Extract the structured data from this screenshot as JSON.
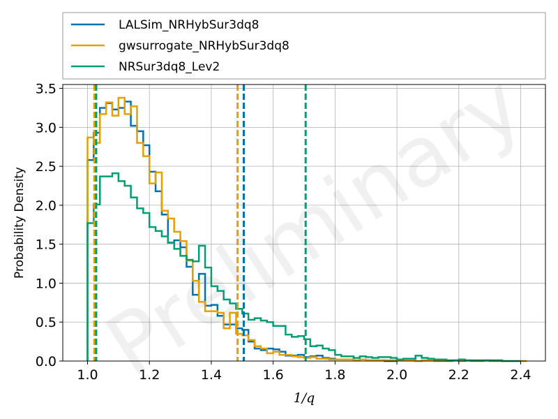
{
  "chart_data": {
    "type": "histogram",
    "xlabel": "1/q",
    "ylabel": "Probability Density",
    "xlim": [
      0.92,
      2.48
    ],
    "ylim": [
      0.0,
      3.55
    ],
    "xticks": [
      1.0,
      1.2,
      1.4,
      1.6,
      1.8,
      2.0,
      2.2,
      2.4
    ],
    "yticks": [
      0.0,
      0.5,
      1.0,
      1.5,
      2.0,
      2.5,
      3.0,
      3.5
    ],
    "xtick_labels": [
      "1.0",
      "1.2",
      "1.4",
      "1.6",
      "1.8",
      "2.0",
      "2.2",
      "2.4"
    ],
    "ytick_labels": [
      "0.0",
      "0.5",
      "1.0",
      "1.5",
      "2.0",
      "2.5",
      "3.0",
      "3.5"
    ],
    "grid": true,
    "legend_position": "above-plot",
    "watermark": "Preliminary",
    "series": [
      {
        "name": "LALSim_NRHybSur3dq8",
        "color": "#0072b2",
        "bins": [
          1.0,
          1.02,
          1.04,
          1.06,
          1.08,
          1.1,
          1.12,
          1.14,
          1.16,
          1.18,
          1.2,
          1.22,
          1.24,
          1.26,
          1.28,
          1.3,
          1.32,
          1.34,
          1.36,
          1.38,
          1.4,
          1.42,
          1.44,
          1.46,
          1.48,
          1.5,
          1.52,
          1.54,
          1.56,
          1.58,
          1.6,
          1.62,
          1.64,
          1.66,
          1.68,
          1.7,
          1.72,
          1.74,
          1.76,
          1.78,
          1.8,
          1.82,
          1.84,
          1.86,
          1.88,
          1.9,
          1.92,
          1.94,
          1.96,
          1.98,
          2.0
        ],
        "values": [
          2.58,
          2.93,
          3.25,
          3.31,
          3.23,
          3.25,
          3.33,
          3.02,
          2.95,
          2.77,
          2.43,
          2.18,
          1.88,
          1.52,
          1.55,
          1.46,
          1.21,
          0.85,
          1.12,
          0.71,
          0.72,
          0.58,
          0.47,
          0.47,
          0.42,
          0.4,
          0.25,
          0.16,
          0.14,
          0.16,
          0.15,
          0.12,
          0.07,
          0.07,
          0.08,
          0.05,
          0.06,
          0.07,
          0.04,
          0.03,
          0.02,
          0.02,
          0.02,
          0.01,
          0.02,
          0.01,
          0.01,
          0.01,
          0.0,
          0.0
        ],
        "lower_90": 1.025,
        "upper_90": 1.505
      },
      {
        "name": "gwsurrogate_NRHybSur3dq8",
        "color": "#e69f00",
        "bins": [
          1.0,
          1.02,
          1.04,
          1.06,
          1.08,
          1.1,
          1.12,
          1.14,
          1.16,
          1.18,
          1.2,
          1.22,
          1.24,
          1.26,
          1.28,
          1.3,
          1.32,
          1.34,
          1.36,
          1.38,
          1.4,
          1.42,
          1.44,
          1.46,
          1.48,
          1.5,
          1.52,
          1.54,
          1.56,
          1.58,
          1.6,
          1.62,
          1.64,
          1.66,
          1.68,
          1.7,
          1.72,
          1.74,
          1.76,
          1.78,
          1.8,
          1.82,
          1.84,
          1.86,
          1.88,
          1.9,
          1.92,
          1.94,
          1.96,
          1.98,
          2.0,
          2.02,
          2.04,
          2.06,
          2.08,
          2.1,
          2.12,
          2.14,
          2.16,
          2.18,
          2.2,
          2.22,
          2.24,
          2.26,
          2.28,
          2.3,
          2.32,
          2.34,
          2.36,
          2.38,
          2.4,
          2.42
        ],
        "values": [
          2.87,
          2.8,
          3.17,
          3.32,
          3.15,
          3.38,
          3.17,
          3.27,
          2.8,
          2.63,
          2.28,
          2.42,
          1.93,
          1.83,
          1.66,
          1.54,
          1.29,
          1.03,
          0.76,
          0.64,
          0.64,
          0.62,
          0.42,
          0.62,
          0.35,
          0.33,
          0.27,
          0.19,
          0.16,
          0.1,
          0.12,
          0.08,
          0.08,
          0.06,
          0.05,
          0.04,
          0.05,
          0.03,
          0.03,
          0.02,
          0.02,
          0.02,
          0.02,
          0.01,
          0.02,
          0.01,
          0.01,
          0.01,
          0.01,
          0.01,
          0.01,
          0.01,
          0.01,
          0.0,
          0.01,
          0.01,
          0.0,
          0.0,
          0.0,
          0.01,
          0.0,
          0.01,
          0.0,
          0.0,
          0.01,
          0.0,
          0.0,
          0.0,
          0.0,
          0.0,
          0.0
        ],
        "lower_90": 1.022,
        "upper_90": 1.485
      },
      {
        "name": "NRSur3dq8_Lev2",
        "color": "#009e73",
        "bins": [
          1.0,
          1.02,
          1.04,
          1.06,
          1.08,
          1.1,
          1.12,
          1.14,
          1.16,
          1.18,
          1.2,
          1.22,
          1.24,
          1.26,
          1.28,
          1.3,
          1.32,
          1.34,
          1.36,
          1.38,
          1.4,
          1.42,
          1.44,
          1.46,
          1.48,
          1.5,
          1.52,
          1.54,
          1.56,
          1.58,
          1.6,
          1.62,
          1.64,
          1.66,
          1.68,
          1.7,
          1.72,
          1.74,
          1.76,
          1.78,
          1.8,
          1.82,
          1.84,
          1.86,
          1.88,
          1.9,
          1.92,
          1.94,
          1.96,
          1.98,
          2.0,
          2.02,
          2.04,
          2.06,
          2.08,
          2.1,
          2.12,
          2.14,
          2.16,
          2.18,
          2.2,
          2.22,
          2.24,
          2.26,
          2.28,
          2.3,
          2.32,
          2.34,
          2.36,
          2.38,
          2.4
        ],
        "values": [
          1.77,
          2.01,
          2.37,
          2.37,
          2.41,
          2.31,
          2.25,
          2.1,
          1.96,
          1.9,
          1.72,
          1.67,
          1.6,
          1.52,
          1.44,
          1.35,
          1.3,
          1.28,
          1.48,
          1.2,
          0.96,
          0.9,
          0.79,
          0.74,
          0.67,
          0.61,
          0.53,
          0.55,
          0.52,
          0.5,
          0.45,
          0.45,
          0.34,
          0.31,
          0.32,
          0.28,
          0.19,
          0.2,
          0.16,
          0.14,
          0.08,
          0.06,
          0.06,
          0.04,
          0.06,
          0.05,
          0.04,
          0.05,
          0.05,
          0.04,
          0.02,
          0.03,
          0.03,
          0.07,
          0.04,
          0.03,
          0.02,
          0.02,
          0.01,
          0.01,
          0.02,
          0.01,
          0.01,
          0.01,
          0.01,
          0.01,
          0.01,
          0.0,
          0.0,
          0.0
        ],
        "lower_90": 1.028,
        "upper_90": 1.705
      }
    ]
  }
}
